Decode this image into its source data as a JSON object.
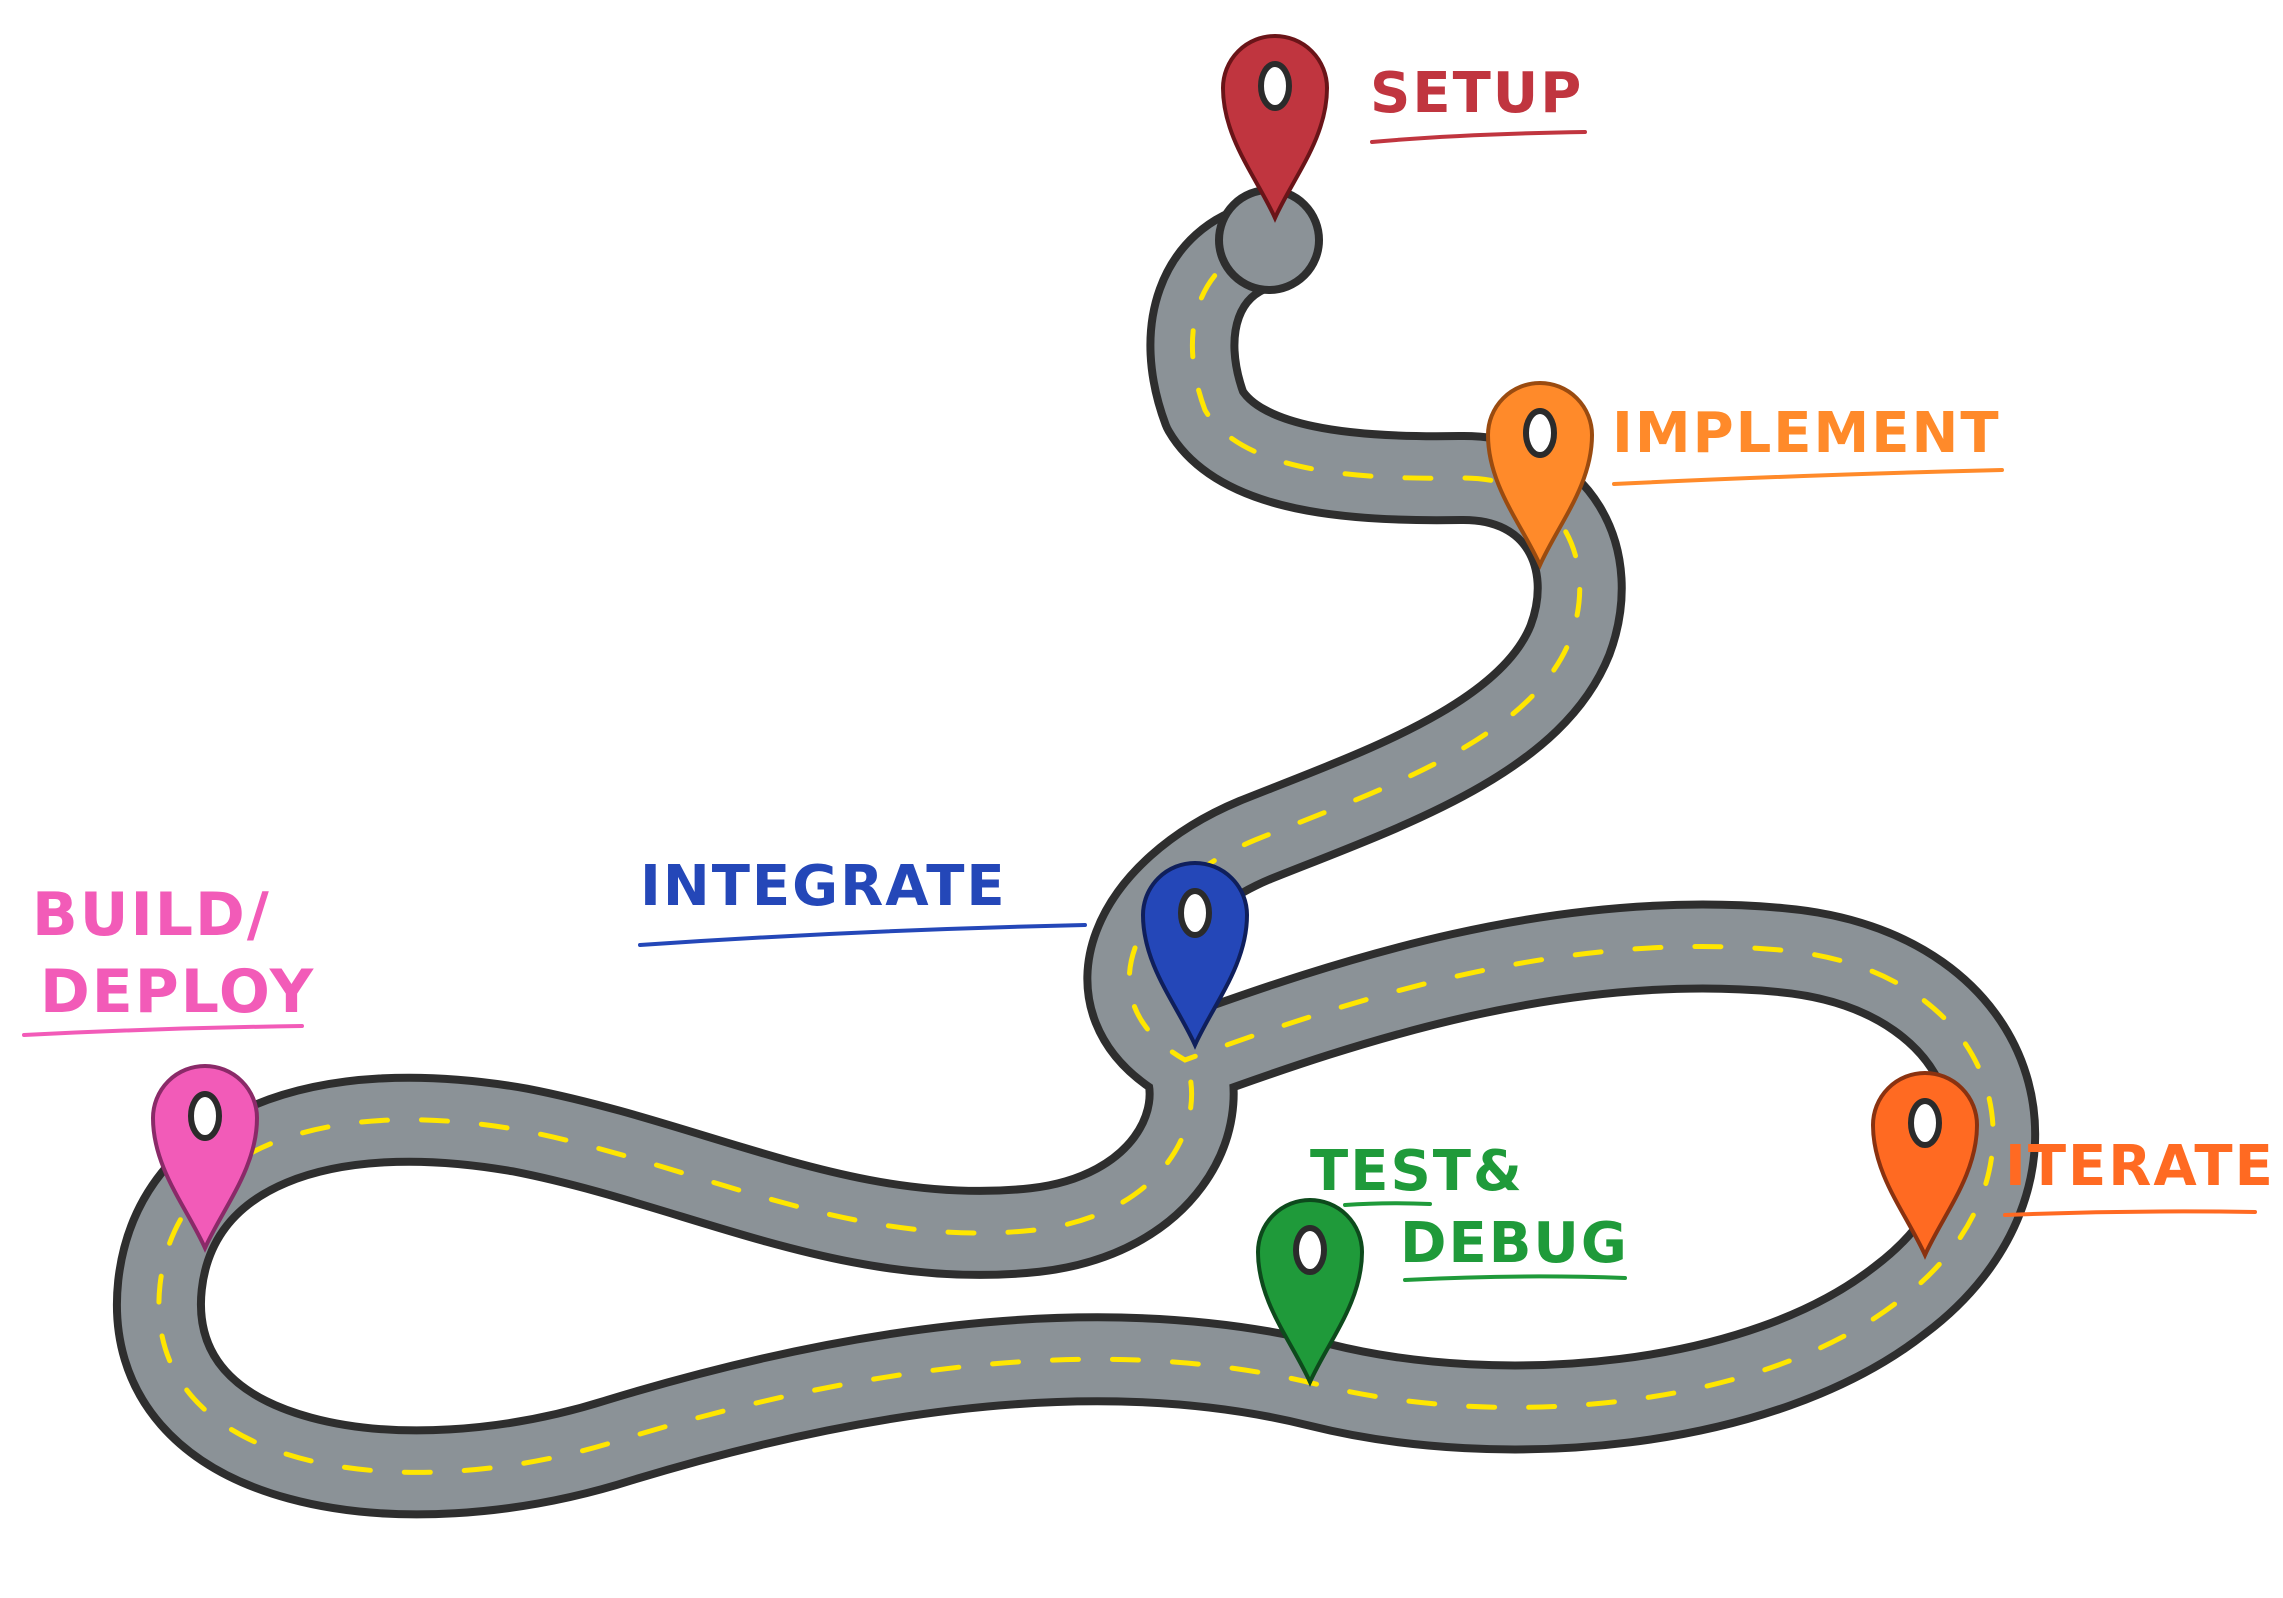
{
  "title": "",
  "colors": {
    "road_fill": "#8b9297",
    "road_edge": "#2e2e2e",
    "road_stripe": "#ffe600",
    "setup": "#c0353f",
    "implement": "#ff8a2a",
    "integrate": "#2447b8",
    "build_deploy": "#f25bb8",
    "test_debug": "#1f9a3a",
    "iterate": "#ff6a22"
  },
  "milestones": [
    {
      "id": "setup",
      "label_lines": [
        "SETUP"
      ],
      "color_key": "setup",
      "icon": "map-pin-icon"
    },
    {
      "id": "implement",
      "label_lines": [
        "IMPLEMENT"
      ],
      "color_key": "implement",
      "icon": "map-pin-icon"
    },
    {
      "id": "integrate",
      "label_lines": [
        "INTEGRATE"
      ],
      "color_key": "integrate",
      "icon": "map-pin-icon"
    },
    {
      "id": "build_deploy",
      "label_lines": [
        "BUILD/",
        "DEPLOY"
      ],
      "color_key": "build_deploy",
      "icon": "map-pin-icon"
    },
    {
      "id": "test_debug",
      "label_lines": [
        "TEST&",
        "DEBUG"
      ],
      "color_key": "test_debug",
      "icon": "map-pin-icon"
    },
    {
      "id": "iterate",
      "label_lines": [
        "ITERATE"
      ],
      "color_key": "iterate",
      "icon": "map-pin-icon"
    }
  ]
}
